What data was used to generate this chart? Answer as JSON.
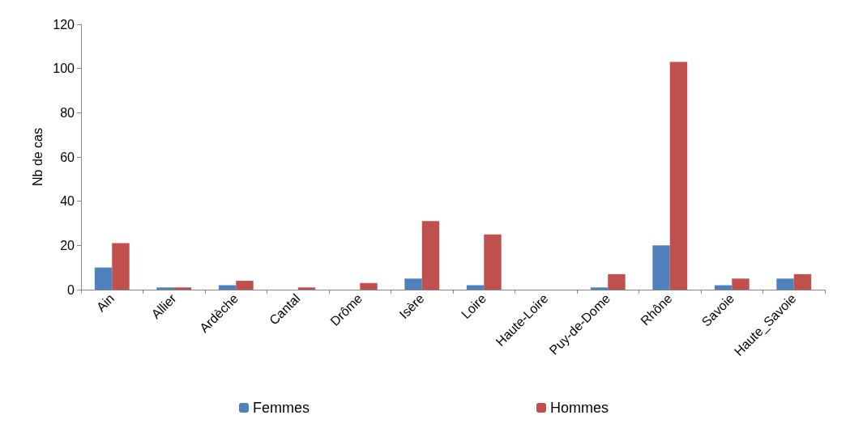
{
  "chart_data": {
    "type": "bar",
    "ylabel": "Nb de cas",
    "categories": [
      "Ain",
      "Allier",
      "Ardèche",
      "Cantal",
      "Drôme",
      "Isère",
      "Loire",
      "Haute-Loire",
      "Puy-de-Dome",
      "Rhône",
      "Savoie",
      "Haute_Savoie"
    ],
    "series": [
      {
        "name": "Femmes",
        "color": "#4f81bd",
        "values": [
          10,
          1,
          2,
          0,
          0,
          5,
          2,
          0,
          1,
          20,
          2,
          5
        ]
      },
      {
        "name": "Hommes",
        "color": "#c0504d",
        "values": [
          21,
          1,
          4,
          1,
          3,
          31,
          25,
          0,
          7,
          103,
          5,
          7
        ]
      }
    ],
    "ylim": [
      0,
      120
    ],
    "yticks": [
      0,
      20,
      40,
      60,
      80,
      100,
      120
    ],
    "grid": false,
    "legend": "bottom"
  }
}
